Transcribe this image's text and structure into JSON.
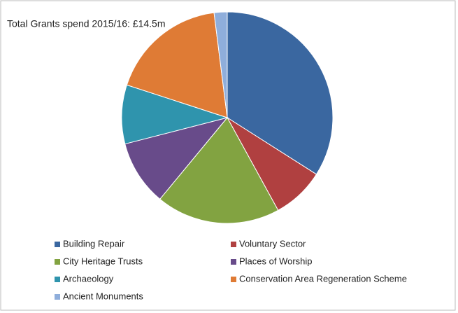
{
  "chart_data": {
    "type": "pie",
    "title": "Total Grants spend 2015/16: £14.5m",
    "categories": [
      "Building Repair",
      "Voluntary Sector",
      "City Heritage Trusts",
      "Places of Worship",
      "Archaeology",
      "Conservation Area Regeneration Scheme",
      "Ancient Monuments"
    ],
    "values": [
      34,
      8,
      19,
      10,
      9,
      18,
      2
    ],
    "colors": [
      "#3a67a0",
      "#b04040",
      "#82a341",
      "#684b8a",
      "#2f94ad",
      "#df7b35",
      "#8faedb"
    ],
    "legend": "bottom"
  }
}
